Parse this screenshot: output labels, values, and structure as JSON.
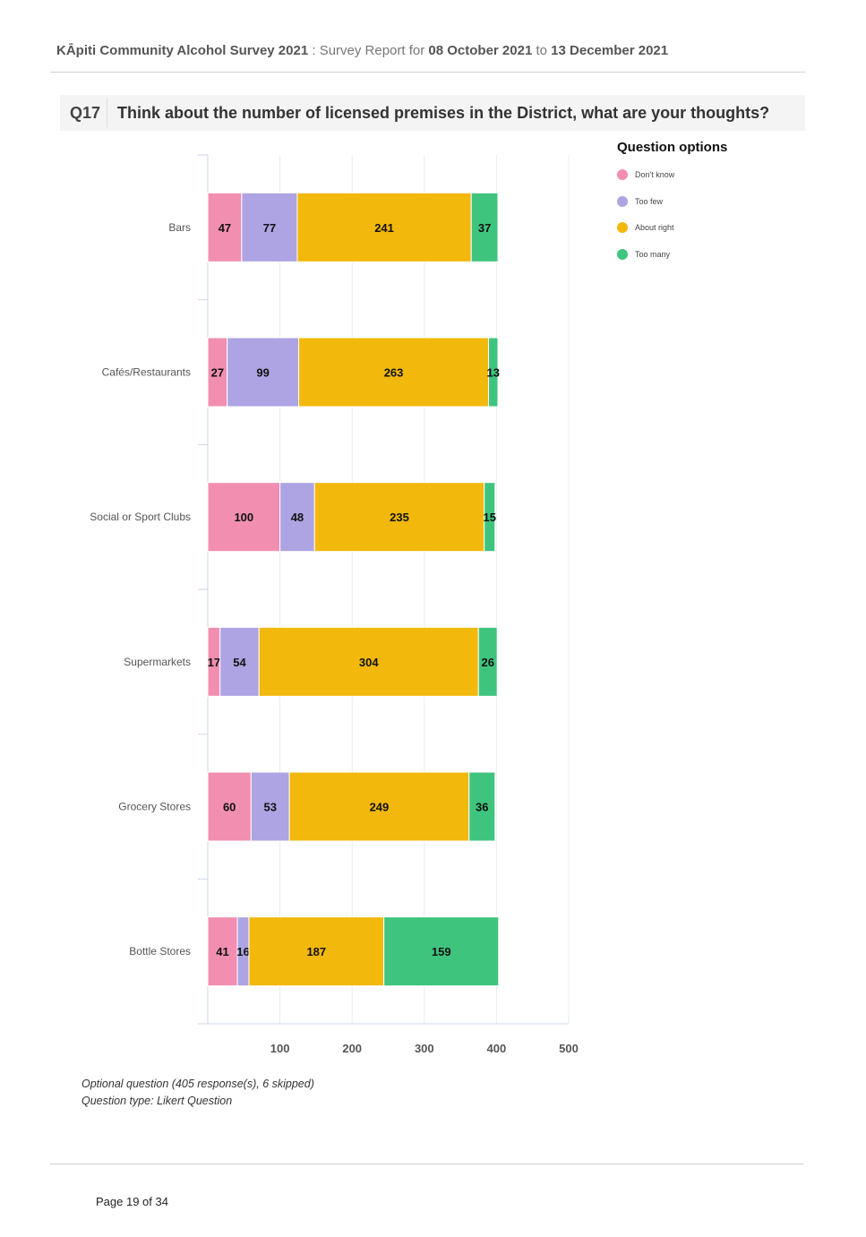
{
  "header": {
    "survey_title": "KĀpiti Community Alcohol Survey 2021",
    "sep": " : ",
    "report_prefix": "Survey Report for ",
    "date_from": "08 October 2021",
    "to_word": " to ",
    "date_to": "13 December 2021"
  },
  "question": {
    "number": "Q17",
    "text": "Think about the number of licensed premises in the District, what are your thoughts?"
  },
  "legend": {
    "title": "Question options"
  },
  "colors": {
    "dont_know": "#f28fb0",
    "too_few": "#aea3e3",
    "about_right": "#f2b80c",
    "too_many": "#3fc47e",
    "grid": "#e6ecf3",
    "axis": "#ccd6eb"
  },
  "chart_data": {
    "type": "bar",
    "orientation": "horizontal",
    "stacked": true,
    "title": "Think about the number of licensed premises in the District, what are your thoughts?",
    "categories": [
      "Bars",
      "Cafés/Restaurants",
      "Social or Sport Clubs",
      "Supermarkets",
      "Grocery Stores",
      "Bottle Stores"
    ],
    "series": [
      {
        "name": "Don't know",
        "color_key": "dont_know",
        "values": [
          47,
          27,
          100,
          17,
          60,
          41
        ]
      },
      {
        "name": "Too few",
        "color_key": "too_few",
        "values": [
          77,
          99,
          48,
          54,
          53,
          16
        ]
      },
      {
        "name": "About right",
        "color_key": "about_right",
        "values": [
          241,
          263,
          235,
          304,
          249,
          187
        ]
      },
      {
        "name": "Too many",
        "color_key": "too_many",
        "values": [
          37,
          13,
          15,
          26,
          36,
          159
        ]
      }
    ],
    "xlim": [
      0,
      500
    ],
    "xticks": [
      100,
      200,
      300,
      400,
      500
    ],
    "xlabel": "",
    "ylabel": "",
    "legend_position": "right",
    "grid": true
  },
  "footer": {
    "note_line1": "Optional question (405 response(s), 6 skipped)",
    "note_line2": "Question type: Likert Question",
    "page": "Page 19 of 34"
  }
}
